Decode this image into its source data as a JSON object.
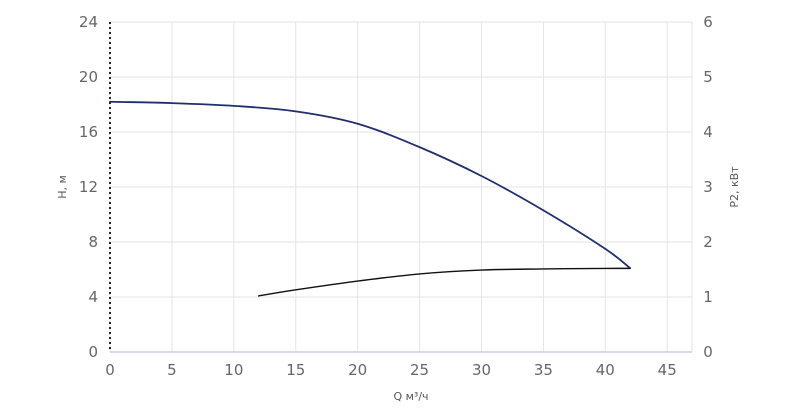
{
  "chart_data": {
    "type": "line",
    "title": "",
    "xlabel": "Q м³/ч",
    "ylabel_left": "H, м",
    "ylabel_right": "P2, кВт",
    "xlim": [
      0,
      47
    ],
    "ylim_left": [
      0,
      24
    ],
    "ylim_right": [
      0,
      6
    ],
    "x_ticks": [
      0,
      5,
      10,
      15,
      20,
      25,
      30,
      35,
      40,
      45
    ],
    "y_left_ticks": [
      0,
      4,
      8,
      12,
      16,
      20,
      24
    ],
    "y_right_ticks": [
      0,
      1,
      2,
      3,
      4,
      5,
      6
    ],
    "grid": true,
    "legend": "none",
    "series": [
      {
        "axis": "left",
        "color": "#1f2f6e",
        "x": [
          0,
          5,
          10,
          15,
          20,
          25,
          30,
          35,
          40,
          42
        ],
        "y": [
          18.2,
          18.1,
          17.9,
          17.5,
          16.6,
          14.9,
          12.8,
          10.3,
          7.5,
          6.1
        ]
      },
      {
        "axis": "right",
        "color": "#111111",
        "x": [
          12,
          15,
          20,
          25,
          30,
          35,
          40,
          42
        ],
        "y": [
          1.02,
          1.13,
          1.29,
          1.42,
          1.49,
          1.51,
          1.52,
          1.52
        ]
      }
    ]
  }
}
